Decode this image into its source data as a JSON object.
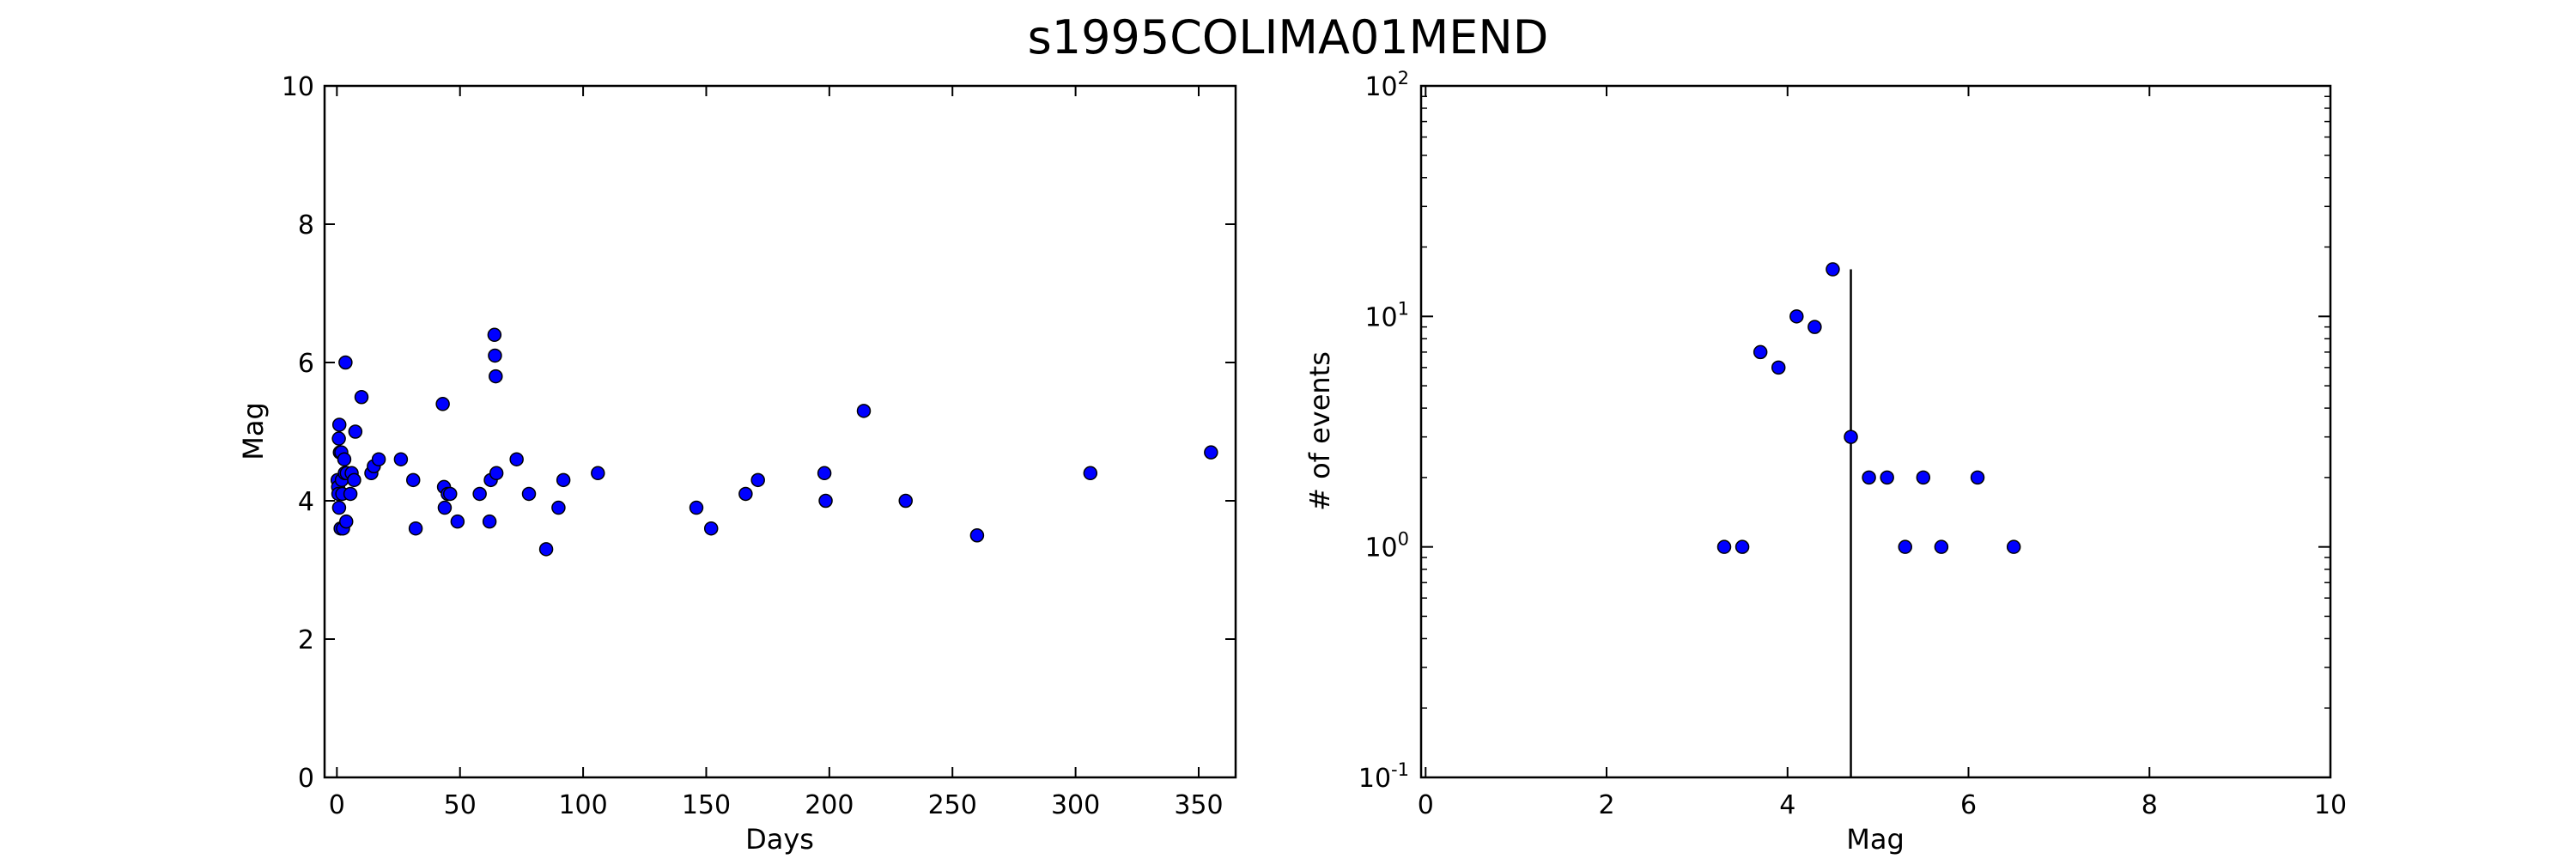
{
  "title": "s1995COLIMA01MEND",
  "colors": {
    "marker": "#0000ff",
    "edge": "#000000",
    "axes": "#000000"
  },
  "chart_data": [
    {
      "type": "scatter",
      "xlabel": "Days",
      "ylabel": "Mag",
      "xlim": [
        -5,
        365
      ],
      "ylim": [
        0,
        10
      ],
      "xticks": [
        0,
        50,
        100,
        150,
        200,
        250,
        300,
        350
      ],
      "yticks": [
        0,
        2,
        4,
        6,
        8,
        10
      ],
      "grid": false,
      "points": [
        [
          0.3,
          4.3
        ],
        [
          0.5,
          4.2
        ],
        [
          0.6,
          4.1
        ],
        [
          0.8,
          4.9
        ],
        [
          0.9,
          3.9
        ],
        [
          1.0,
          5.1
        ],
        [
          1.2,
          4.7
        ],
        [
          1.5,
          3.6
        ],
        [
          1.8,
          4.7
        ],
        [
          2.0,
          4.3
        ],
        [
          2.2,
          4.1
        ],
        [
          2.5,
          3.6
        ],
        [
          3.0,
          4.6
        ],
        [
          3.2,
          4.4
        ],
        [
          3.5,
          6.0
        ],
        [
          3.8,
          3.7
        ],
        [
          4.0,
          4.4
        ],
        [
          5.5,
          4.1
        ],
        [
          6.0,
          4.4
        ],
        [
          7.0,
          4.3
        ],
        [
          7.5,
          5.0
        ],
        [
          10.0,
          5.5
        ],
        [
          14.0,
          4.4
        ],
        [
          15.0,
          4.5
        ],
        [
          17.0,
          4.6
        ],
        [
          26.0,
          4.6
        ],
        [
          31.0,
          4.3
        ],
        [
          32.0,
          3.6
        ],
        [
          43.0,
          5.4
        ],
        [
          43.5,
          4.2
        ],
        [
          43.8,
          3.9
        ],
        [
          45.0,
          4.1
        ],
        [
          46.0,
          4.1
        ],
        [
          49.0,
          3.7
        ],
        [
          58.0,
          4.1
        ],
        [
          62.0,
          3.7
        ],
        [
          62.5,
          4.3
        ],
        [
          64.0,
          6.4
        ],
        [
          64.2,
          6.1
        ],
        [
          64.5,
          5.8
        ],
        [
          64.8,
          4.4
        ],
        [
          73.0,
          4.6
        ],
        [
          78.0,
          4.1
        ],
        [
          85.0,
          3.3
        ],
        [
          90.0,
          3.9
        ],
        [
          92.0,
          4.3
        ],
        [
          106.0,
          4.4
        ],
        [
          146.0,
          3.9
        ],
        [
          152.0,
          3.6
        ],
        [
          166.0,
          4.1
        ],
        [
          171.0,
          4.3
        ],
        [
          198.0,
          4.4
        ],
        [
          198.5,
          4.0
        ],
        [
          214.0,
          5.3
        ],
        [
          231.0,
          4.0
        ],
        [
          260.0,
          3.5
        ],
        [
          306.0,
          4.4
        ],
        [
          355.0,
          4.7
        ]
      ]
    },
    {
      "type": "scatter",
      "xlabel": "Mag",
      "ylabel": "# of events",
      "xlim": [
        -0.05,
        10
      ],
      "ylim": [
        0.1,
        100
      ],
      "yscale": "log",
      "xticks": [
        0,
        2,
        4,
        6,
        8,
        10
      ],
      "yticks": [
        {
          "value": 0.1,
          "base": "10",
          "exp": "-1"
        },
        {
          "value": 1,
          "base": "10",
          "exp": "0"
        },
        {
          "value": 10,
          "base": "10",
          "exp": "1"
        },
        {
          "value": 100,
          "base": "10",
          "exp": "2"
        }
      ],
      "grid": false,
      "points": [
        [
          3.3,
          1
        ],
        [
          3.5,
          1
        ],
        [
          3.7,
          7
        ],
        [
          3.9,
          6
        ],
        [
          4.1,
          10
        ],
        [
          4.3,
          9
        ],
        [
          4.5,
          16
        ],
        [
          4.7,
          3
        ],
        [
          4.9,
          2
        ],
        [
          5.1,
          2
        ],
        [
          5.3,
          1
        ],
        [
          5.5,
          2
        ],
        [
          5.7,
          1
        ],
        [
          6.1,
          2
        ],
        [
          6.5,
          1
        ]
      ],
      "vline": {
        "x": 4.7,
        "y_from": 0.1,
        "y_to": 16
      }
    }
  ]
}
